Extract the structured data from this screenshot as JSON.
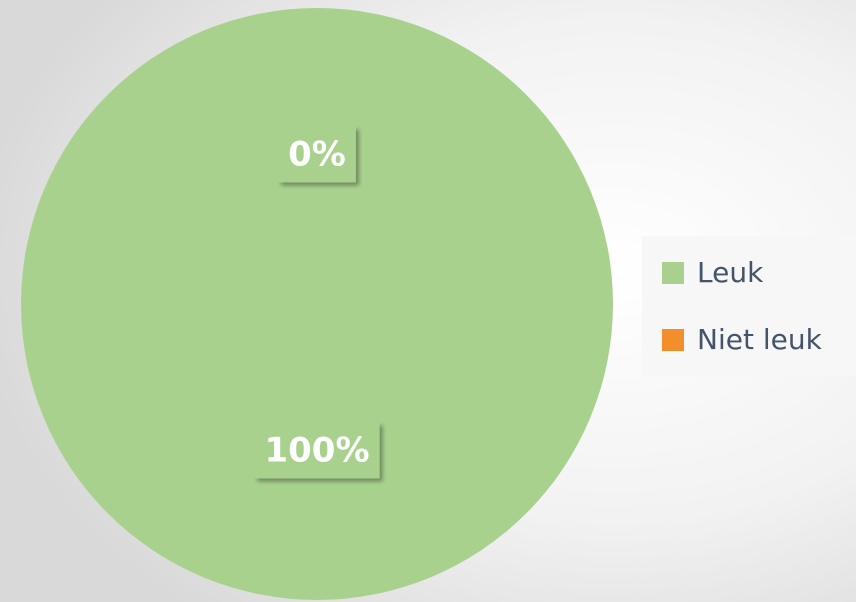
{
  "chart_data": {
    "type": "pie",
    "categories": [
      "Leuk",
      "Niet leuk"
    ],
    "values": [
      100,
      0
    ],
    "value_labels": [
      "100%",
      "0%"
    ],
    "colors": [
      "#a9d18e",
      "#f28e2b"
    ],
    "legend": "right"
  }
}
